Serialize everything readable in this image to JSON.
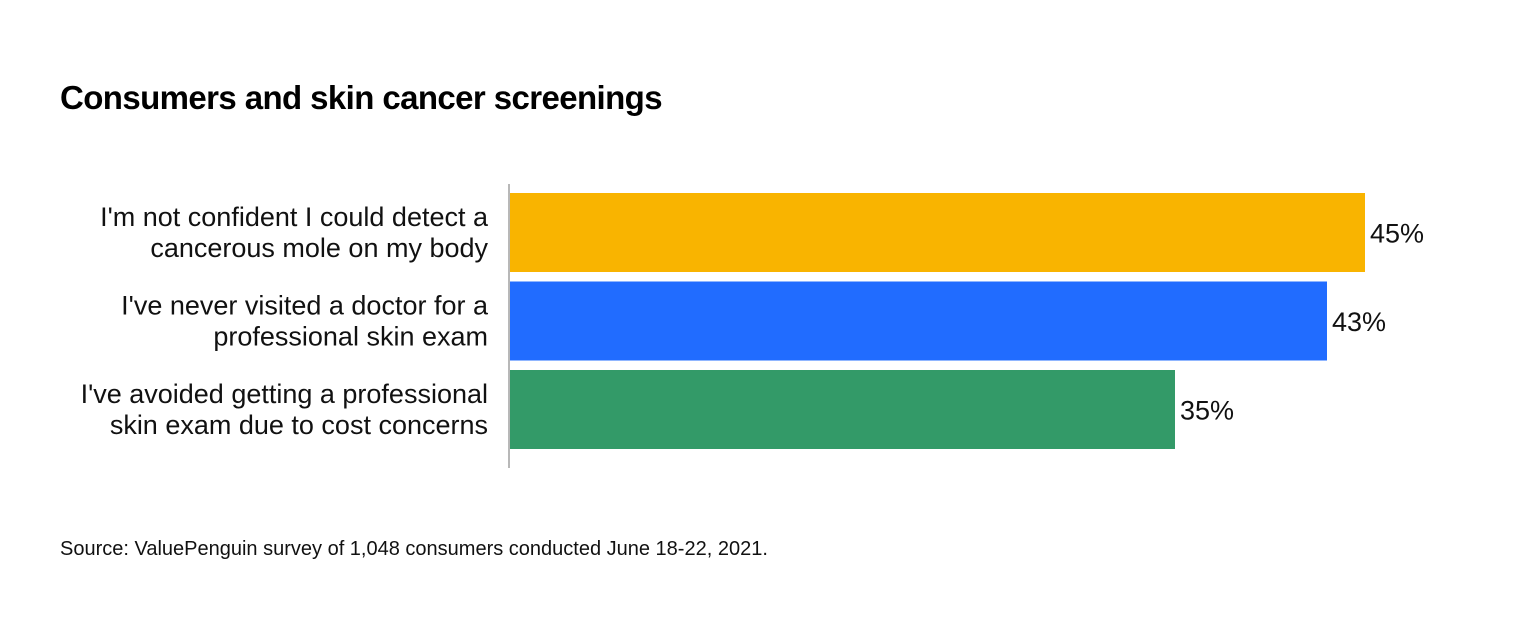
{
  "chart_data": {
    "type": "bar",
    "orientation": "horizontal",
    "title": "Consumers and skin cancer screenings",
    "categories": [
      [
        "I'm not confident I could detect a",
        "cancerous mole on my body"
      ],
      [
        "I've never visited a doctor for a",
        "professional skin exam"
      ],
      [
        "I've avoided getting a professional",
        "skin exam due to cost concerns"
      ]
    ],
    "values": [
      45,
      43,
      35
    ],
    "value_labels": [
      "45%",
      "43%",
      "35%"
    ],
    "colors": [
      "#F9B400",
      "#216CFF",
      "#339A68"
    ],
    "xlim": [
      0,
      45
    ],
    "grid": false,
    "legend": "none",
    "source": "Source: ValuePenguin survey of 1,048 consumers conducted June 18-22, 2021."
  }
}
